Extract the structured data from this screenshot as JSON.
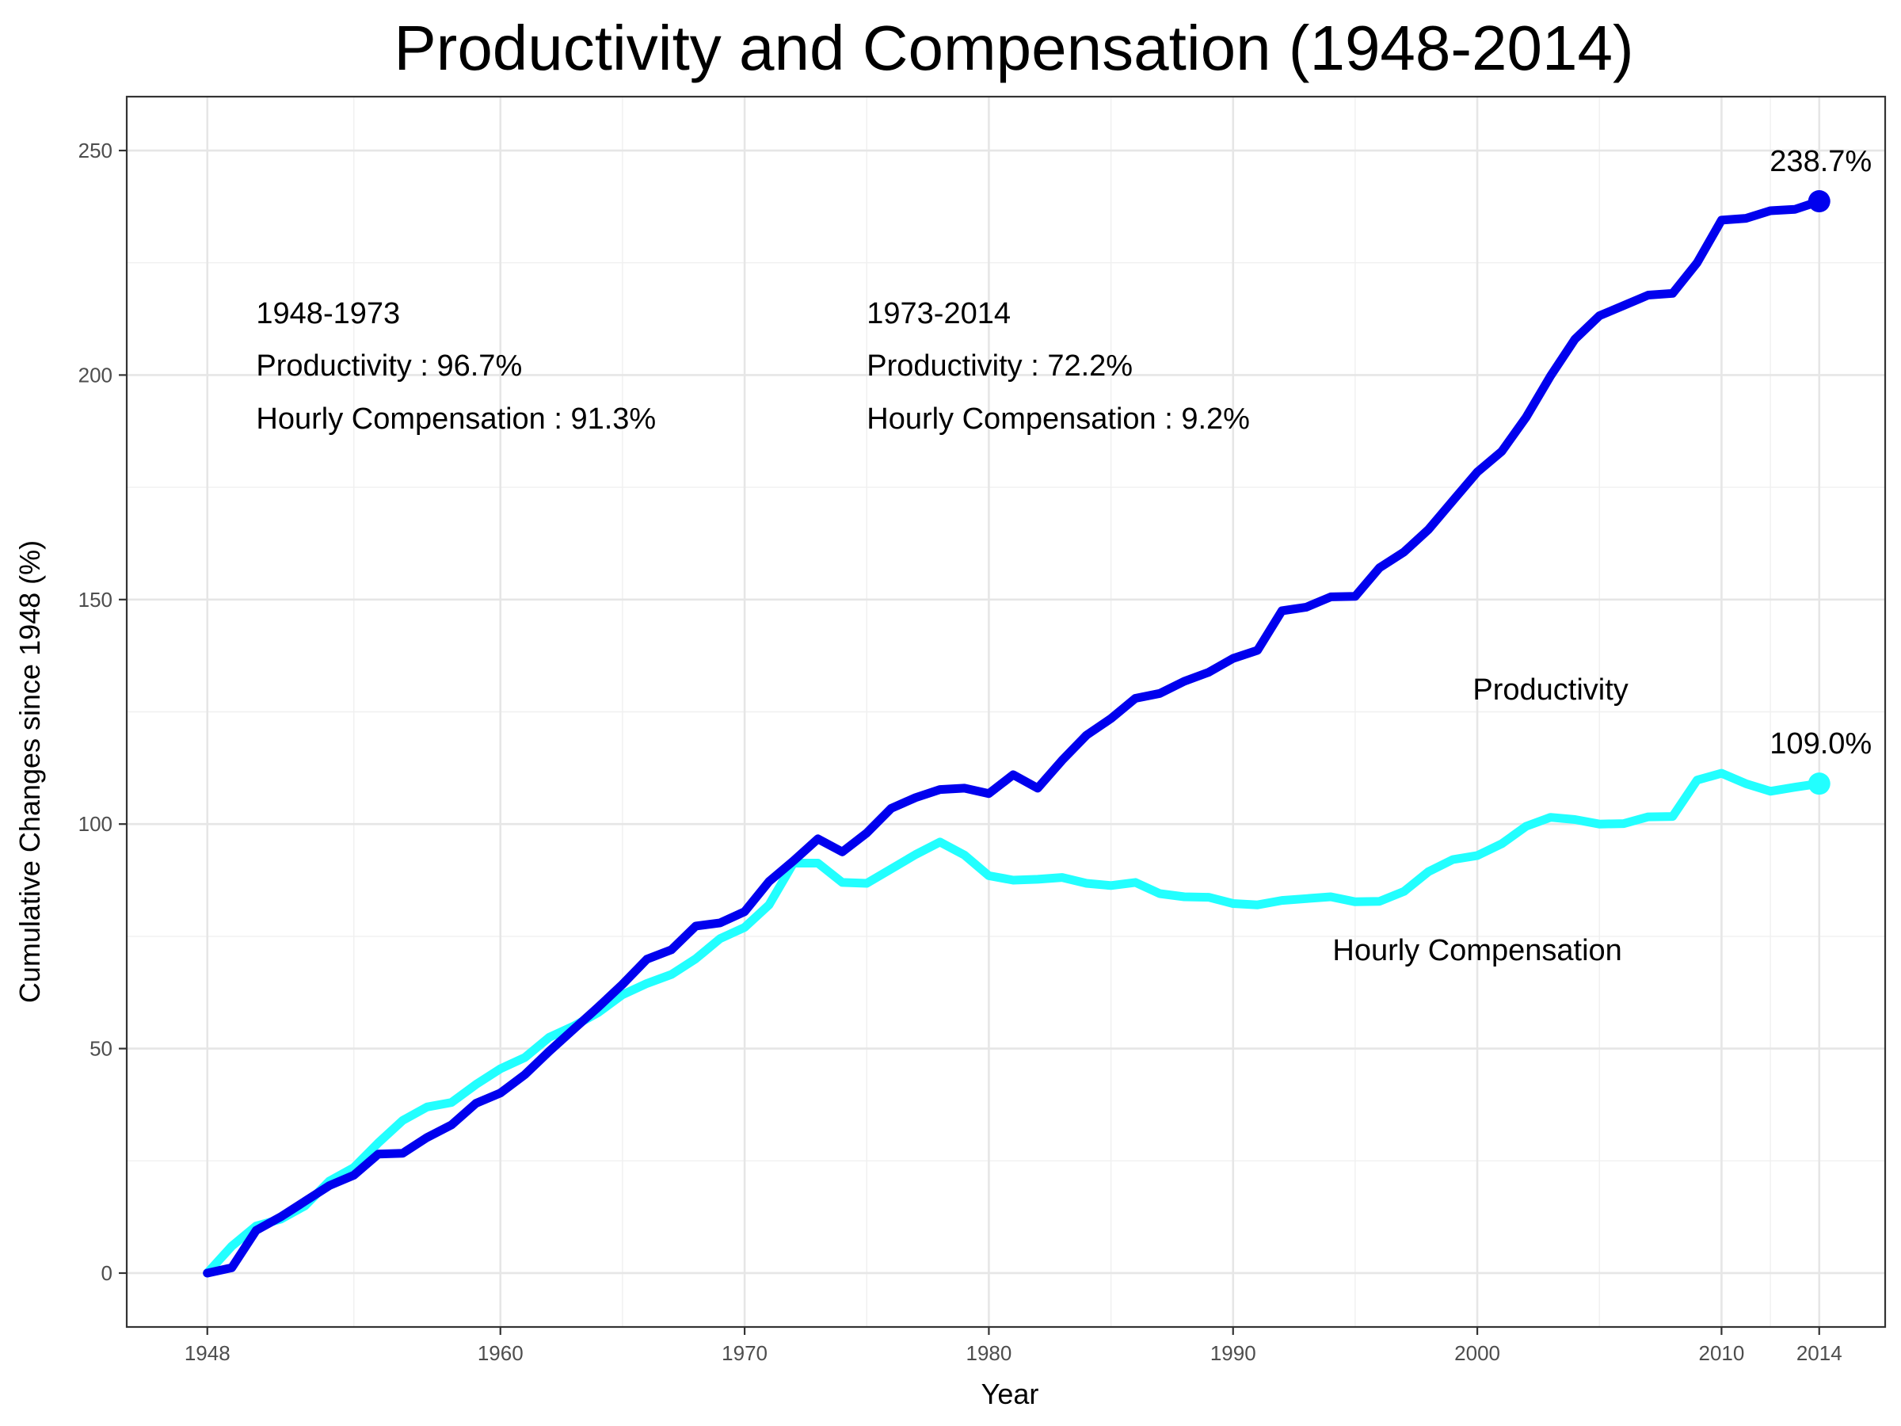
{
  "chart_data": {
    "type": "line",
    "title": "Productivity and Compensation (1948-2014)",
    "xlabel": "Year",
    "ylabel": "Cumulative Changes since 1948 (%)",
    "xlim": [
      1944.7,
      2016.7
    ],
    "ylim": [
      -12,
      262
    ],
    "x_ticks": [
      1948,
      1960,
      1970,
      1980,
      1990,
      2000,
      2010,
      2014
    ],
    "y_ticks": [
      0,
      50,
      100,
      150,
      200,
      250
    ],
    "grid": true,
    "legend": "none",
    "x": [
      1948,
      1949,
      1950,
      1951,
      1952,
      1953,
      1954,
      1955,
      1956,
      1957,
      1958,
      1959,
      1960,
      1961,
      1962,
      1963,
      1964,
      1965,
      1966,
      1967,
      1968,
      1969,
      1970,
      1971,
      1972,
      1973,
      1974,
      1975,
      1976,
      1977,
      1978,
      1979,
      1980,
      1981,
      1982,
      1983,
      1984,
      1985,
      1986,
      1987,
      1988,
      1989,
      1990,
      1991,
      1992,
      1993,
      1994,
      1995,
      1996,
      1997,
      1998,
      1999,
      2000,
      2001,
      2002,
      2003,
      2004,
      2005,
      2006,
      2007,
      2008,
      2009,
      2010,
      2011,
      2012,
      2013,
      2014
    ],
    "series": [
      {
        "name": "Productivity",
        "color": "#0000ee",
        "values": [
          0,
          1.2,
          9.5,
          12.5,
          16,
          19.5,
          21.8,
          26.5,
          26.7,
          30.2,
          33,
          37.8,
          40.1,
          44.2,
          49.4,
          54.3,
          59.2,
          64.3,
          69.9,
          72,
          77.3,
          78,
          80.5,
          87.2,
          91.8,
          96.7,
          93.8,
          98,
          103.5,
          105.9,
          107.7,
          108,
          106.8,
          111,
          108,
          114.2,
          119.8,
          123.5,
          128,
          129.1,
          131.8,
          133.8,
          136.9,
          138.7,
          147.5,
          148.3,
          150.6,
          150.7,
          157.1,
          160.6,
          165.6,
          172,
          178.4,
          183,
          190.6,
          199.8,
          208,
          213.2,
          215.5,
          217.8,
          218.2,
          225,
          234.5,
          234.9,
          236.6,
          236.9,
          238.7
        ]
      },
      {
        "name": "Hourly Compensation",
        "color": "#22ffff",
        "values": [
          0,
          6,
          10.5,
          12,
          15,
          20.5,
          23.5,
          29,
          34,
          37,
          38,
          42,
          45.5,
          48,
          52.5,
          55,
          58,
          62,
          64.5,
          66.5,
          70,
          74.5,
          77,
          82,
          91.3,
          91.3,
          87,
          86.8,
          90,
          93.2,
          96,
          93.1,
          88.5,
          87.5,
          87.7,
          88.1,
          86.8,
          86.3,
          87,
          84.5,
          83.8,
          83.7,
          82.3,
          82,
          83,
          83.4,
          83.8,
          82.7,
          82.8,
          85,
          89.4,
          92.1,
          93,
          95.6,
          99.5,
          101.5,
          101,
          100,
          100.1,
          101.6,
          101.7,
          109.8,
          111.3,
          109,
          107.3,
          108.2,
          109
        ]
      }
    ],
    "series_labels": [
      {
        "text": "Productivity",
        "x": 2003,
        "y": 130
      },
      {
        "text": "Hourly Compensation",
        "x": 2000,
        "y": 72
      }
    ],
    "end_labels": [
      {
        "text": "238.7%",
        "x": 2014,
        "y": 238.7,
        "color": "#0000ee"
      },
      {
        "text": "109.0%",
        "x": 2014,
        "y": 109,
        "color": "#22ffff"
      }
    ],
    "annotations": [
      {
        "x": 1950,
        "lines": [
          "1948-1973",
          "Productivity : 96.7%",
          "Hourly Compensation : 91.3%"
        ]
      },
      {
        "x": 1975,
        "lines": [
          "1973-2014",
          "Productivity : 72.2%",
          "Hourly Compensation : 9.2%"
        ]
      }
    ]
  }
}
